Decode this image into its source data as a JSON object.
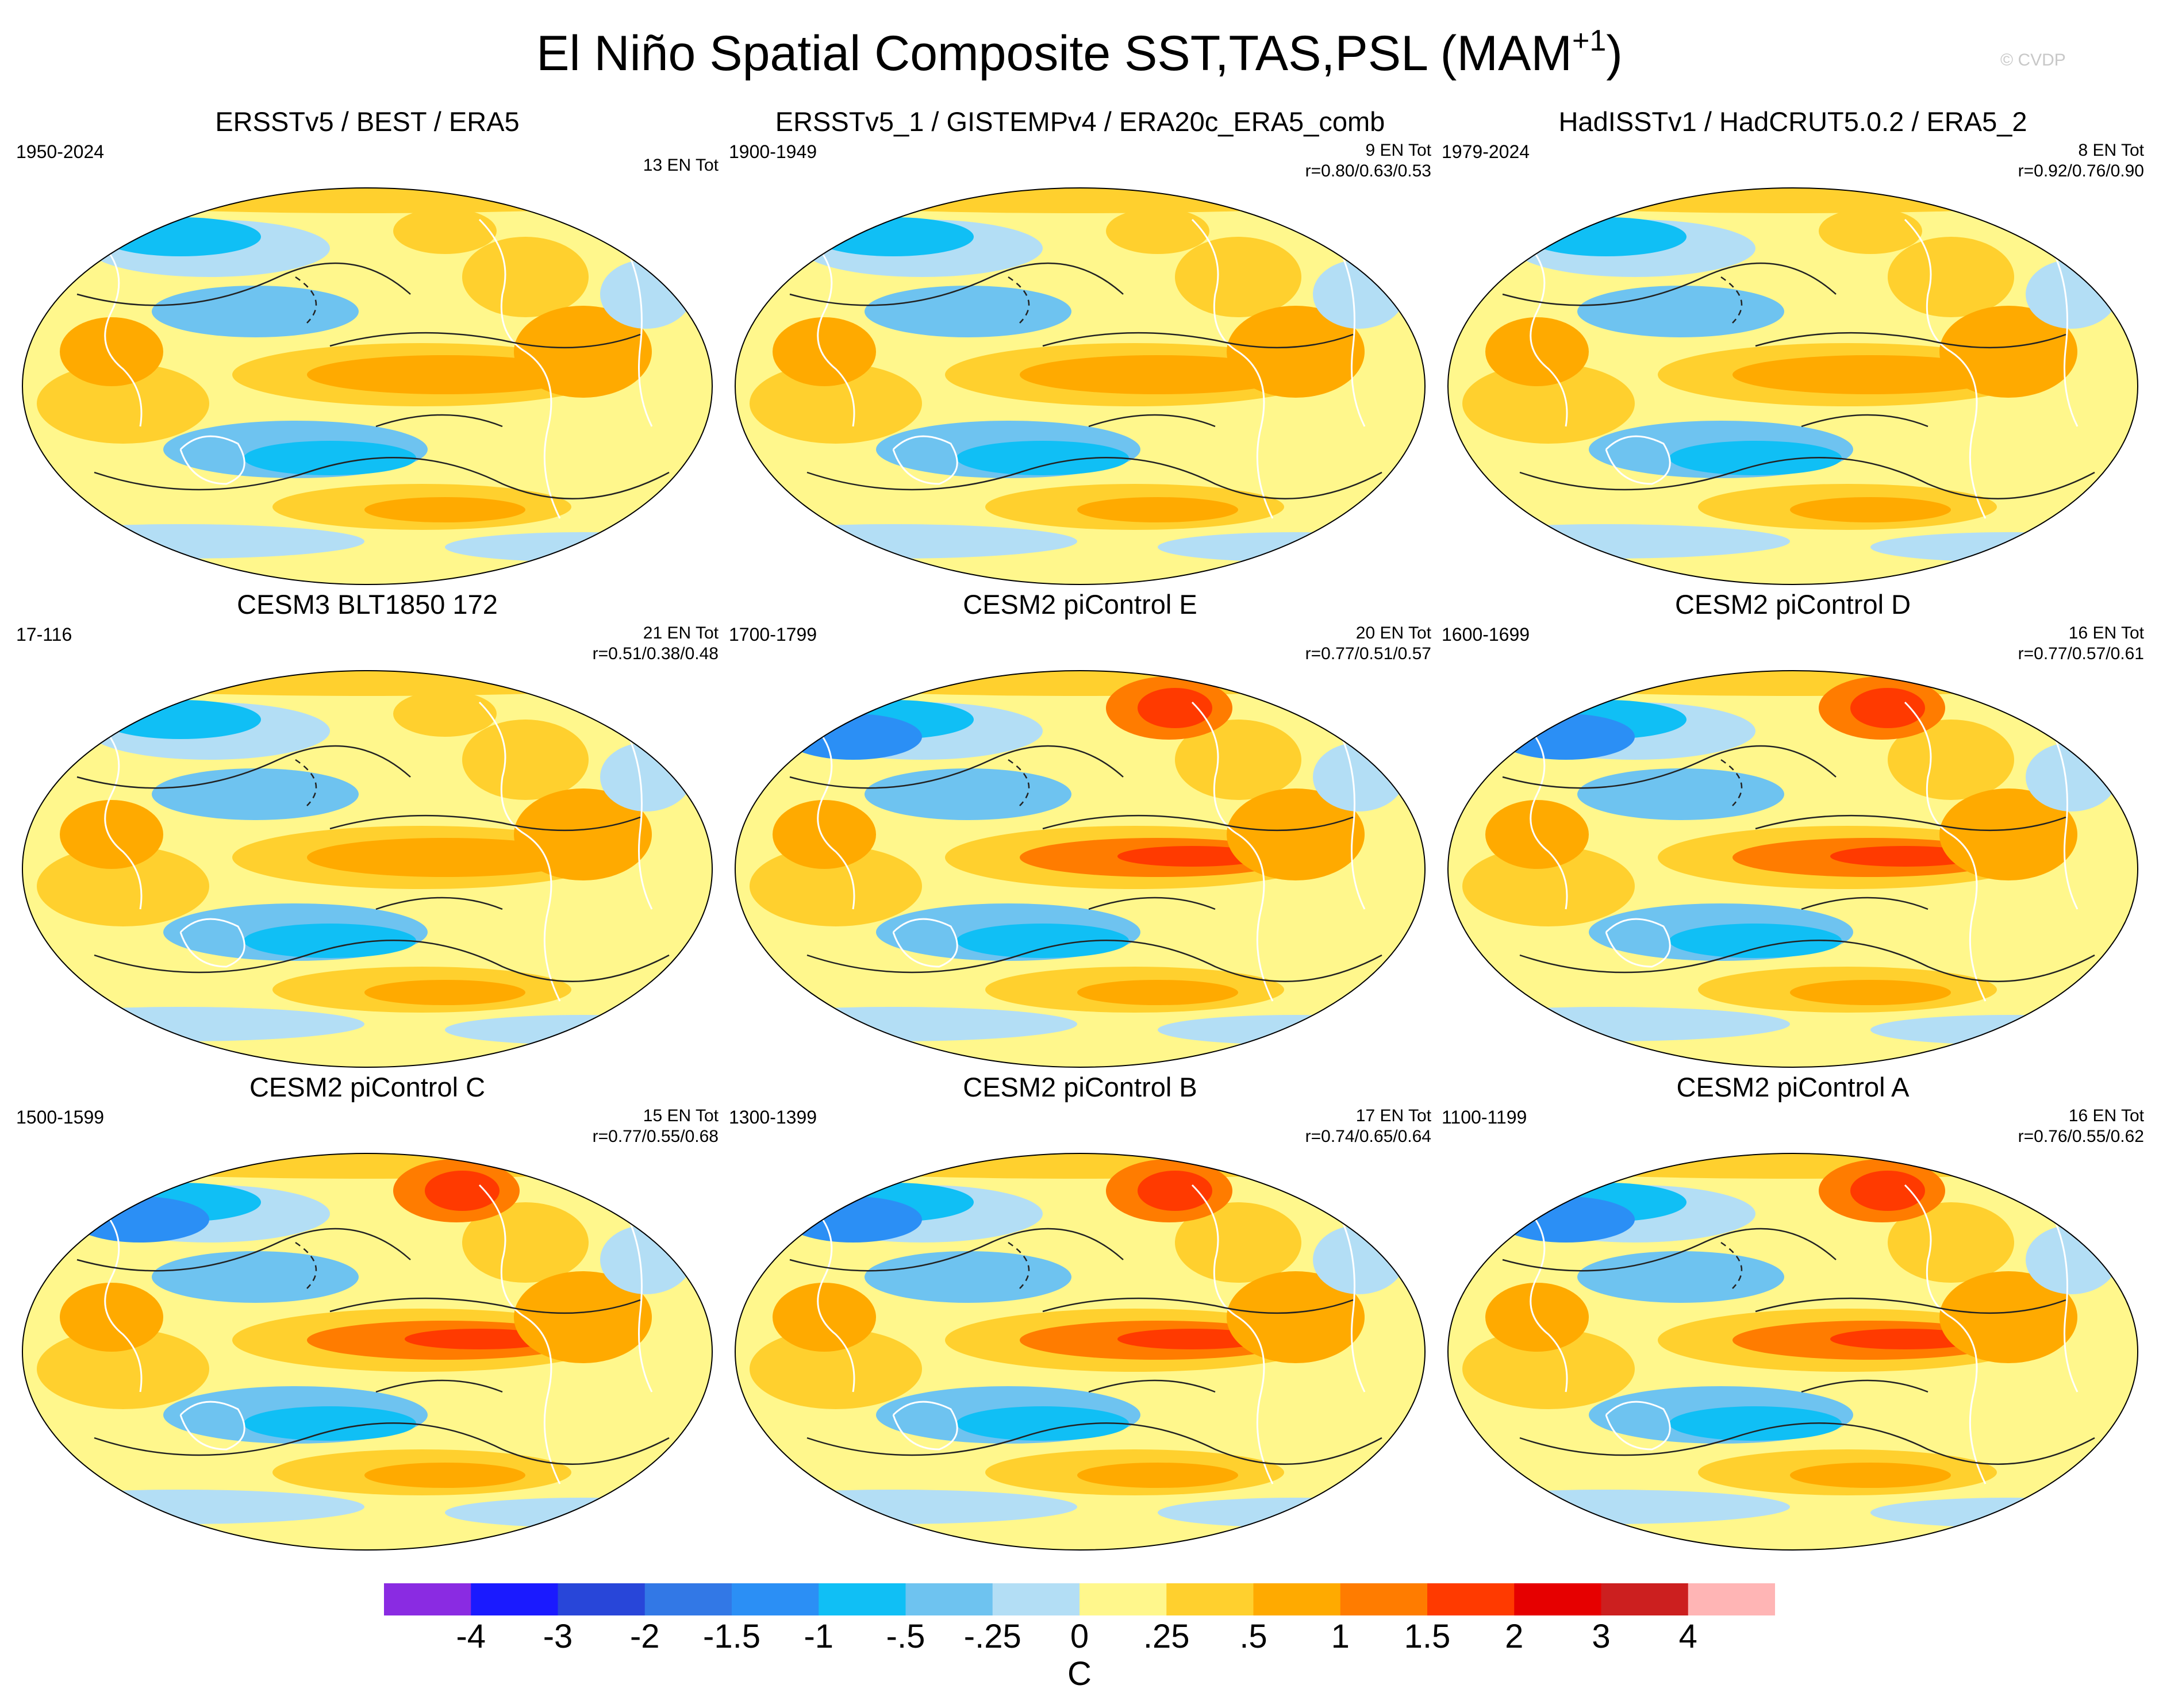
{
  "chart_data": {
    "type": "heatmap",
    "title": "El Niño Spatial Composite SST,TAS,PSL (MAM",
    "title_superscript": "+1",
    "watermark": "© CVDP",
    "colorbar": {
      "unit": "C",
      "labels": [
        "-4",
        "-3",
        "-2",
        "-1.5",
        "-1",
        "-.5",
        "-.25",
        "0",
        ".25",
        ".5",
        "1",
        "1.5",
        "2",
        "3",
        "4"
      ],
      "colors": [
        "#8a2be2",
        "#1a1aff",
        "#2846d9",
        "#3278e6",
        "#2b8ff5",
        "#10bff5",
        "#6ec3f0",
        "#b3def5",
        "#fff78c",
        "#ffd02e",
        "#ffaa00",
        "#ff7c00",
        "#ff3a00",
        "#e60000",
        "#cc1f1f",
        "#ffb5b5"
      ]
    },
    "panels": [
      {
        "title": "ERSSTv5 / BEST / ERA5",
        "years": "1950-2024",
        "en_total": "13 EN Tot",
        "corr": ""
      },
      {
        "title": "ERSSTv5_1 / GISTEMPv4 / ERA20c_ERA5_comb",
        "years": "1900-1949",
        "en_total": "9 EN Tot",
        "corr": "r=0.80/0.63/0.53"
      },
      {
        "title": "HadISSTv1 / HadCRUT5.0.2 / ERA5_2",
        "years": "1979-2024",
        "en_total": "8 EN Tot",
        "corr": "r=0.92/0.76/0.90"
      },
      {
        "title": "CESM3 BLT1850 172",
        "years": "17-116",
        "en_total": "21 EN Tot",
        "corr": "r=0.51/0.38/0.48"
      },
      {
        "title": "CESM2 piControl E",
        "years": "1700-1799",
        "en_total": "20 EN Tot",
        "corr": "r=0.77/0.51/0.57"
      },
      {
        "title": "CESM2 piControl D",
        "years": "1600-1699",
        "en_total": "16 EN Tot",
        "corr": "r=0.77/0.57/0.61"
      },
      {
        "title": "CESM2 piControl C",
        "years": "1500-1599",
        "en_total": "15 EN Tot",
        "corr": "r=0.77/0.55/0.68"
      },
      {
        "title": "CESM2 piControl B",
        "years": "1300-1399",
        "en_total": "17 EN Tot",
        "corr": "r=0.74/0.65/0.64"
      },
      {
        "title": "CESM2 piControl A",
        "years": "1100-1199",
        "en_total": "16 EN Tot",
        "corr": "r=0.76/0.55/0.62"
      }
    ]
  }
}
